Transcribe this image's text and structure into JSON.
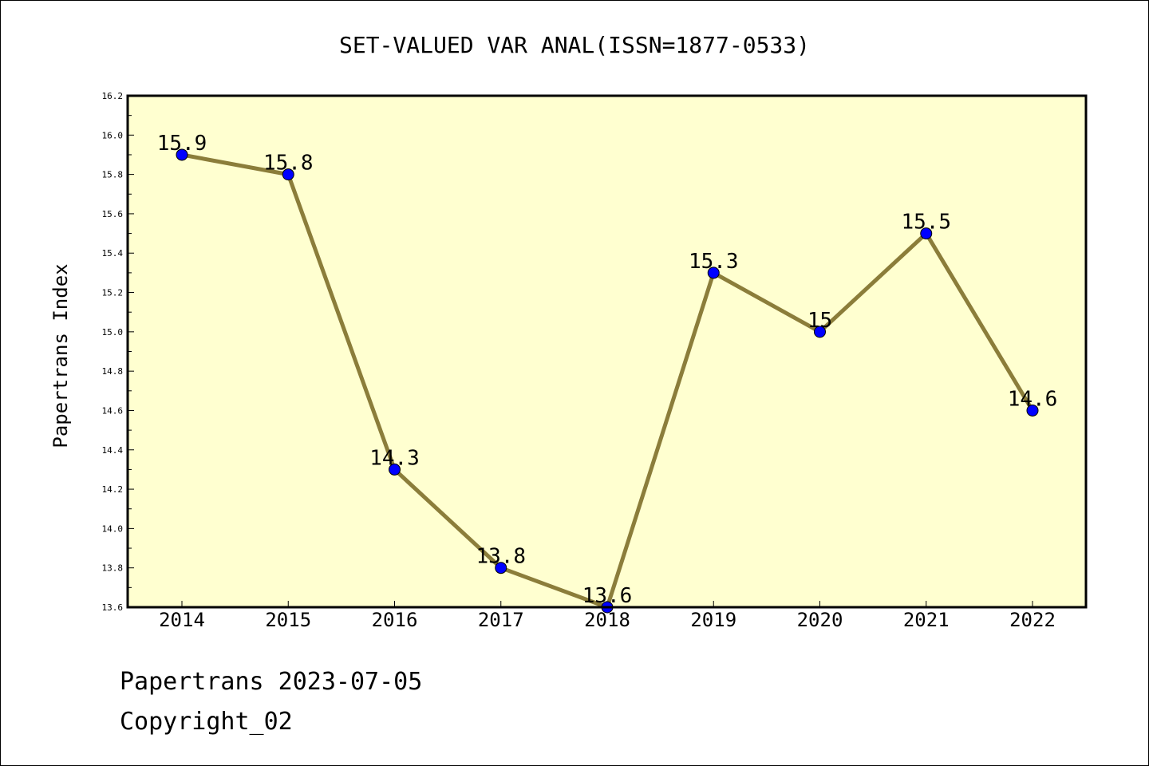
{
  "chart_data": {
    "type": "line",
    "title": "SET-VALUED VAR ANAL(ISSN=1877-0533)",
    "xlabel": "",
    "ylabel": "Papertrans Index",
    "categories": [
      "2014",
      "2015",
      "2016",
      "2017",
      "2018",
      "2019",
      "2020",
      "2021",
      "2022"
    ],
    "values": [
      15.9,
      15.8,
      14.3,
      13.8,
      13.6,
      15.3,
      15.0,
      15.5,
      14.6
    ],
    "data_labels": [
      "15.9",
      "15.8",
      "14.3",
      "13.8",
      "13.6",
      "15.3",
      "15",
      "15.5",
      "14.6"
    ],
    "ylim": [
      13.6,
      16.2
    ],
    "yticks": [
      "13.6",
      "13.8",
      "14.0",
      "14.2",
      "14.4",
      "14.6",
      "14.8",
      "15.0",
      "15.2",
      "15.4",
      "15.6",
      "15.8",
      "16.0",
      "16.2"
    ],
    "grid": false,
    "legend": "none",
    "colors": {
      "plot_background": "#ffffd0",
      "line": "#8b7d3a",
      "marker": "#0000ff"
    }
  },
  "footer": {
    "line1": "Papertrans 2023-07-05",
    "line2": "Copyright_02"
  }
}
